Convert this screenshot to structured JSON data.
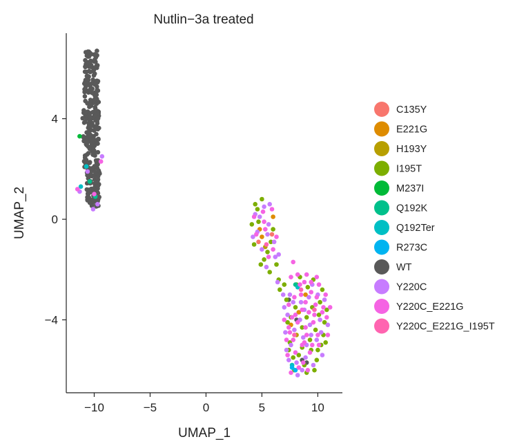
{
  "chart_data": {
    "type": "scatter",
    "title": "Nutlin−3a treated",
    "xlabel": "UMAP_1",
    "ylabel": "UMAP_2",
    "xlim": [
      -12.5,
      12.2
    ],
    "ylim": [
      -6.9,
      7.4
    ],
    "xticks": [
      -10,
      -5,
      0,
      5,
      10
    ],
    "xtick_labels": [
      "−10",
      "−5",
      "0",
      "5",
      "10"
    ],
    "yticks": [
      -4,
      0,
      4
    ],
    "ytick_labels": [
      "−4",
      "0",
      "4"
    ],
    "grid": false,
    "legend_position": "right",
    "series": [
      {
        "name": "C135Y",
        "color": "#F8766D",
        "points": [
          [
            5.9,
            -0.6
          ],
          [
            4.7,
            -0.9
          ]
        ]
      },
      {
        "name": "E221G",
        "color": "#DE8C00",
        "points": [
          [
            5.0,
            -0.7
          ],
          [
            8.3,
            -3.7
          ],
          [
            7.6,
            -4.2
          ],
          [
            6.0,
            0.1
          ],
          [
            4.8,
            -0.4
          ],
          [
            8.9,
            -3.0
          ]
        ]
      },
      {
        "name": "H193Y",
        "color": "#B79F00",
        "points": [
          [
            5.3,
            -1.1
          ],
          [
            8.1,
            -4.6
          ]
        ]
      },
      {
        "name": "I195T",
        "color": "#7CAE00",
        "points": [
          [
            4.1,
            -0.2
          ],
          [
            4.6,
            0.4
          ],
          [
            5.0,
            0.8
          ],
          [
            5.5,
            -1.3
          ],
          [
            4.3,
            -1.0
          ],
          [
            6.0,
            -0.4
          ],
          [
            5.2,
            -1.6
          ],
          [
            6.3,
            -1.8
          ],
          [
            5.7,
            -2.1
          ],
          [
            4.9,
            -1.8
          ],
          [
            6.6,
            -2.8
          ],
          [
            7.2,
            -3.2
          ],
          [
            8.4,
            -2.3
          ],
          [
            9.6,
            -2.4
          ],
          [
            10.2,
            -3.3
          ],
          [
            10.6,
            -4.1
          ],
          [
            10.3,
            -5.0
          ],
          [
            9.9,
            -5.6
          ],
          [
            9.4,
            -5.2
          ],
          [
            8.6,
            -5.1
          ],
          [
            7.8,
            -5.5
          ],
          [
            7.5,
            -4.9
          ],
          [
            7.3,
            -4.1
          ],
          [
            8.0,
            -3.5
          ],
          [
            9.0,
            -3.9
          ],
          [
            9.8,
            -4.4
          ],
          [
            10.5,
            -4.6
          ],
          [
            10.1,
            -3.8
          ],
          [
            9.3,
            -4.8
          ],
          [
            8.8,
            -5.8
          ],
          [
            7.9,
            -6.0
          ],
          [
            7.4,
            -5.2
          ],
          [
            10.8,
            -3.6
          ],
          [
            10.4,
            -2.8
          ],
          [
            9.1,
            -2.7
          ],
          [
            8.6,
            -4.3
          ],
          [
            9.5,
            -3.5
          ],
          [
            7.6,
            -3.9
          ],
          [
            10.0,
            -5.2
          ],
          [
            9.7,
            -6.0
          ],
          [
            8.3,
            -5.4
          ],
          [
            4.4,
            0.6
          ],
          [
            5.8,
            -0.9
          ],
          [
            6.5,
            -2.4
          ],
          [
            7.0,
            -2.6
          ],
          [
            9.0,
            -6.1
          ],
          [
            10.7,
            -4.9
          ],
          [
            8.1,
            -2.6
          ],
          [
            7.7,
            -5.8
          ],
          [
            4.7,
            -0.1
          ]
        ]
      },
      {
        "name": "M237I",
        "color": "#00BA38",
        "points": [
          [
            -11.3,
            3.3
          ]
        ]
      },
      {
        "name": "Q192K",
        "color": "#00C08B",
        "points": [
          [
            -10.4,
            1.5
          ],
          [
            -9.9,
            0.9
          ],
          [
            8.0,
            -2.6
          ]
        ]
      },
      {
        "name": "Q192Ter",
        "color": "#00BFC4",
        "points": [
          [
            -10.7,
            2.1
          ],
          [
            -11.2,
            1.3
          ],
          [
            8.2,
            -2.7
          ],
          [
            7.7,
            -5.8
          ]
        ]
      },
      {
        "name": "R273C",
        "color": "#00B4F0",
        "points": [
          [
            8.0,
            -6.0
          ],
          [
            7.7,
            -5.9
          ]
        ]
      },
      {
        "name": "WT",
        "color": "#595959",
        "points": []
      },
      {
        "name": "Y220C",
        "color": "#C77CFF",
        "points": [
          [
            4.4,
            0.2
          ],
          [
            5.2,
            0.5
          ],
          [
            5.6,
            -0.2
          ],
          [
            4.2,
            -0.7
          ],
          [
            5.0,
            -1.2
          ],
          [
            6.1,
            -0.9
          ],
          [
            6.2,
            -1.5
          ],
          [
            5.4,
            -1.9
          ],
          [
            7.0,
            -3.5
          ],
          [
            7.5,
            -3.0
          ],
          [
            8.5,
            -3.3
          ],
          [
            9.2,
            -3.1
          ],
          [
            10.0,
            -3.0
          ],
          [
            10.6,
            -3.2
          ],
          [
            10.9,
            -4.2
          ],
          [
            10.4,
            -5.4
          ],
          [
            9.6,
            -5.8
          ],
          [
            8.9,
            -5.5
          ],
          [
            8.1,
            -5.7
          ],
          [
            7.4,
            -5.6
          ],
          [
            7.1,
            -4.5
          ],
          [
            7.3,
            -3.8
          ],
          [
            8.4,
            -4.0
          ],
          [
            9.3,
            -4.2
          ],
          [
            8.7,
            -4.7
          ],
          [
            9.9,
            -4.8
          ],
          [
            7.9,
            -4.4
          ],
          [
            8.2,
            -6.2
          ],
          [
            7.6,
            -5.0
          ],
          [
            10.2,
            -4.0
          ],
          [
            4.6,
            -0.5
          ],
          [
            5.7,
            0.6
          ],
          [
            6.4,
            -2.5
          ],
          [
            6.9,
            -3.0
          ],
          [
            9.5,
            -2.6
          ],
          [
            -11.3,
            1.1
          ],
          [
            -9.7,
            0.6
          ],
          [
            -9.3,
            2.5
          ],
          [
            -10.6,
            1.9
          ],
          [
            -10.1,
            0.4
          ],
          [
            8.8,
            -3.6
          ],
          [
            9.4,
            -4.6
          ],
          [
            10.3,
            -4.5
          ],
          [
            7.8,
            -3.3
          ],
          [
            8.6,
            -6.0
          ],
          [
            7.2,
            -5.2
          ],
          [
            9.0,
            -5.0
          ],
          [
            6.5,
            -1.4
          ],
          [
            4.8,
            0.1
          ],
          [
            5.5,
            -0.6
          ]
        ]
      },
      {
        "name": "Y220C_E221G",
        "color": "#F564E3",
        "points": [
          [
            4.3,
            0.1
          ],
          [
            5.1,
            0.3
          ],
          [
            5.9,
            0.4
          ],
          [
            4.5,
            -0.6
          ],
          [
            5.3,
            -0.4
          ],
          [
            6.0,
            -1.2
          ],
          [
            5.6,
            -1.5
          ],
          [
            7.8,
            -1.7
          ],
          [
            8.2,
            -2.2
          ],
          [
            8.8,
            -2.5
          ],
          [
            9.4,
            -2.9
          ],
          [
            10.1,
            -2.6
          ],
          [
            10.7,
            -3.0
          ],
          [
            11.1,
            -3.5
          ],
          [
            10.8,
            -3.9
          ],
          [
            9.8,
            -3.4
          ],
          [
            9.2,
            -3.7
          ],
          [
            8.5,
            -3.0
          ],
          [
            7.9,
            -3.1
          ],
          [
            7.4,
            -3.4
          ],
          [
            7.0,
            -4.0
          ],
          [
            7.5,
            -4.5
          ],
          [
            8.2,
            -4.1
          ],
          [
            8.9,
            -4.3
          ],
          [
            9.6,
            -4.1
          ],
          [
            10.4,
            -3.7
          ],
          [
            10.0,
            -4.6
          ],
          [
            9.3,
            -5.3
          ],
          [
            8.6,
            -5.0
          ],
          [
            7.8,
            -4.8
          ],
          [
            7.3,
            -5.4
          ],
          [
            8.0,
            -5.3
          ],
          [
            8.7,
            -5.7
          ],
          [
            9.1,
            -6.0
          ],
          [
            8.3,
            -5.9
          ],
          [
            7.6,
            -6.1
          ],
          [
            9.9,
            -2.3
          ],
          [
            9.0,
            -2.2
          ],
          [
            8.4,
            -2.6
          ],
          [
            7.6,
            -2.3
          ],
          [
            10.5,
            -3.5
          ],
          [
            9.7,
            -3.8
          ],
          [
            8.0,
            -3.8
          ],
          [
            7.2,
            -4.8
          ],
          [
            8.8,
            -4.9
          ],
          [
            9.5,
            -5.0
          ],
          [
            10.1,
            -5.0
          ],
          [
            7.4,
            -4.3
          ],
          [
            8.9,
            -3.3
          ],
          [
            9.4,
            -2.5
          ],
          [
            -11.5,
            1.2
          ],
          [
            -10.0,
            1.0
          ],
          [
            -9.4,
            2.3
          ],
          [
            5.2,
            -0.1
          ],
          [
            6.3,
            -0.7
          ],
          [
            7.7,
            -3.9
          ],
          [
            8.6,
            -3.6
          ],
          [
            9.0,
            -4.6
          ],
          [
            9.9,
            -3.1
          ],
          [
            10.9,
            -4.6
          ]
        ]
      },
      {
        "name": "Y220C_E221G_I195T",
        "color": "#FF64B0",
        "points": [
          [
            8.5,
            -2.8
          ],
          [
            9.7,
            -3.6
          ],
          [
            7.9,
            -4.6
          ],
          [
            5.4,
            -1.0
          ]
        ]
      }
    ],
    "wt_cluster": {
      "x_center": -10.3,
      "x_spread": 0.75,
      "y_min": 0.5,
      "y_max": 6.7,
      "count": 330
    }
  }
}
